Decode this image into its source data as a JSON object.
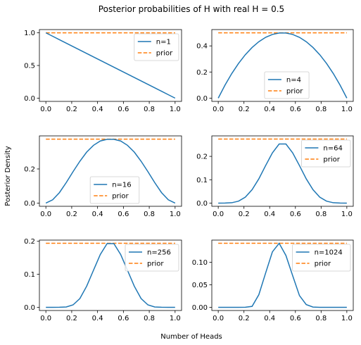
{
  "chart_data": {
    "type": "line",
    "title": "Posterior probabilities of H with real H = 0.5",
    "xlabel": "Number of Heads",
    "ylabel": "Posterior Density",
    "colors": {
      "posterior": "#1f77b4",
      "prior": "#ff7f0e"
    },
    "x": [
      0.0,
      0.0526,
      0.1053,
      0.1579,
      0.2105,
      0.2632,
      0.3158,
      0.3684,
      0.4211,
      0.4737,
      0.5263,
      0.5789,
      0.6316,
      0.6842,
      0.7368,
      0.7895,
      0.8421,
      0.8947,
      0.9474,
      1.0
    ],
    "x_ticks": [
      "0.0",
      "0.2",
      "0.4",
      "0.6",
      "0.8",
      "1.0"
    ],
    "panels": [
      {
        "legend": [
          "n=1",
          "prior"
        ],
        "legend_position": "top-right",
        "ylim": [
          -0.05,
          1.05
        ],
        "y_ticks": [
          "0.0",
          "0.5",
          "1.0"
        ],
        "prior": 1.0,
        "values": [
          1.0,
          0.9474,
          0.8947,
          0.8421,
          0.7895,
          0.7368,
          0.6842,
          0.6316,
          0.5789,
          0.5263,
          0.4737,
          0.4211,
          0.3684,
          0.3158,
          0.2632,
          0.2105,
          0.1579,
          0.1053,
          0.0526,
          0.0
        ]
      },
      {
        "legend": [
          "n=4",
          "prior"
        ],
        "legend_position": "lower-center",
        "ylim": [
          -0.025,
          0.525
        ],
        "y_ticks": [
          "0.0",
          "0.2",
          "0.4"
        ],
        "prior": 0.5,
        "values": [
          0.0,
          0.0997,
          0.1884,
          0.2659,
          0.3324,
          0.3878,
          0.4321,
          0.4654,
          0.4875,
          0.4986,
          0.4986,
          0.4875,
          0.4654,
          0.4321,
          0.3878,
          0.3324,
          0.2659,
          0.1884,
          0.0997,
          0.0
        ]
      },
      {
        "legend": [
          "n=16",
          "prior"
        ],
        "legend_position": "lower-center",
        "ylim": [
          -0.019,
          0.394
        ],
        "y_ticks": [
          "0.0",
          "0.2"
        ],
        "prior": 0.375,
        "values": [
          0.0,
          0.019,
          0.0616,
          0.1203,
          0.1843,
          0.2453,
          0.299,
          0.3386,
          0.364,
          0.374,
          0.374,
          0.364,
          0.3386,
          0.299,
          0.2453,
          0.1843,
          0.1203,
          0.0616,
          0.019,
          0.0
        ]
      },
      {
        "legend": [
          "n=64",
          "prior"
        ],
        "legend_position": "top-right",
        "ylim": [
          -0.0137,
          0.2877
        ],
        "y_ticks": [
          "0.0",
          "0.1",
          "0.2"
        ],
        "prior": 0.274,
        "values": [
          0.0,
          0.0001,
          0.0016,
          0.0083,
          0.0255,
          0.0575,
          0.104,
          0.1606,
          0.2149,
          0.253,
          0.253,
          0.2149,
          0.1606,
          0.104,
          0.0575,
          0.0255,
          0.0083,
          0.0016,
          0.0001,
          0.0
        ]
      },
      {
        "legend": [
          "n=256",
          "prior"
        ],
        "legend_position": "top-right",
        "ylim": [
          -0.0097,
          0.2037
        ],
        "y_ticks": [
          "0.0",
          "0.1",
          "0.2"
        ],
        "prior": 0.194,
        "values": [
          0.0,
          0.0,
          0.0001,
          0.001,
          0.0074,
          0.0266,
          0.064,
          0.1122,
          0.16,
          0.193,
          0.193,
          0.16,
          0.1122,
          0.064,
          0.0266,
          0.0074,
          0.001,
          0.0001,
          0.0,
          0.0
        ]
      },
      {
        "legend": [
          "n=1024",
          "prior"
        ],
        "legend_position": "top-right",
        "ylim": [
          -0.0071,
          0.1491
        ],
        "y_ticks": [
          "0.00",
          "0.05",
          "0.10"
        ],
        "prior": 0.142,
        "values": [
          0.0,
          0.0,
          0.0,
          0.0,
          0.0001,
          0.002,
          0.028,
          0.076,
          0.123,
          0.142,
          0.115,
          0.07,
          0.026,
          0.006,
          0.0005,
          0.0,
          0.0,
          0.0,
          0.0,
          0.0
        ]
      }
    ]
  }
}
